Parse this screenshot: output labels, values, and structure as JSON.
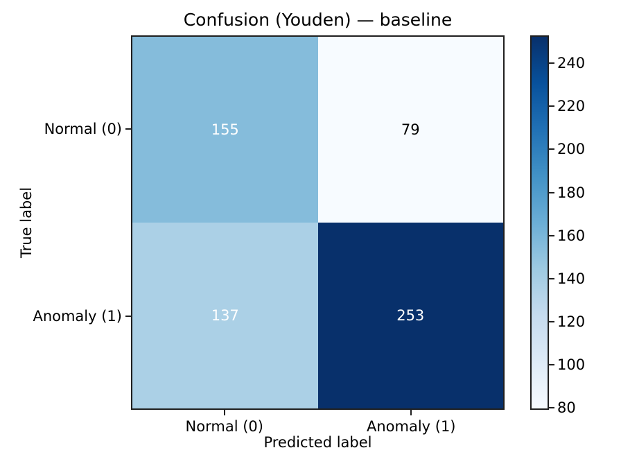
{
  "chart_data": {
    "type": "heatmap",
    "title": "Confusion (Youden) — baseline",
    "xlabel": "Predicted label",
    "ylabel": "True label",
    "x_categories": [
      "Normal (0)",
      "Anomaly (1)"
    ],
    "y_categories": [
      "Normal (0)",
      "Anomaly (1)"
    ],
    "values": [
      [
        155,
        79
      ],
      [
        137,
        253
      ]
    ],
    "vmin": 79,
    "vmax": 253,
    "colormap": "Blues",
    "colorbar_ticks": [
      80,
      100,
      120,
      140,
      160,
      180,
      200,
      220,
      240
    ],
    "cell_colors": [
      [
        "#85bcdb",
        "#f7fbff"
      ],
      [
        "#abd0e6",
        "#08306b"
      ]
    ],
    "cell_text_colors": [
      [
        "#ffffff",
        "#000000"
      ],
      [
        "#ffffff",
        "#ffffff"
      ]
    ],
    "grid": false,
    "legend": "colorbar-right"
  },
  "colors": {
    "background": "#ffffff",
    "spine": "#1f1f1f",
    "tick": "#1f1f1f",
    "text": "#000000",
    "colormap_stops": [
      "#f7fbff",
      "#deebf7",
      "#c6dbef",
      "#9ecae1",
      "#6baed6",
      "#4292c6",
      "#2171b5",
      "#08519c",
      "#08306b"
    ]
  }
}
